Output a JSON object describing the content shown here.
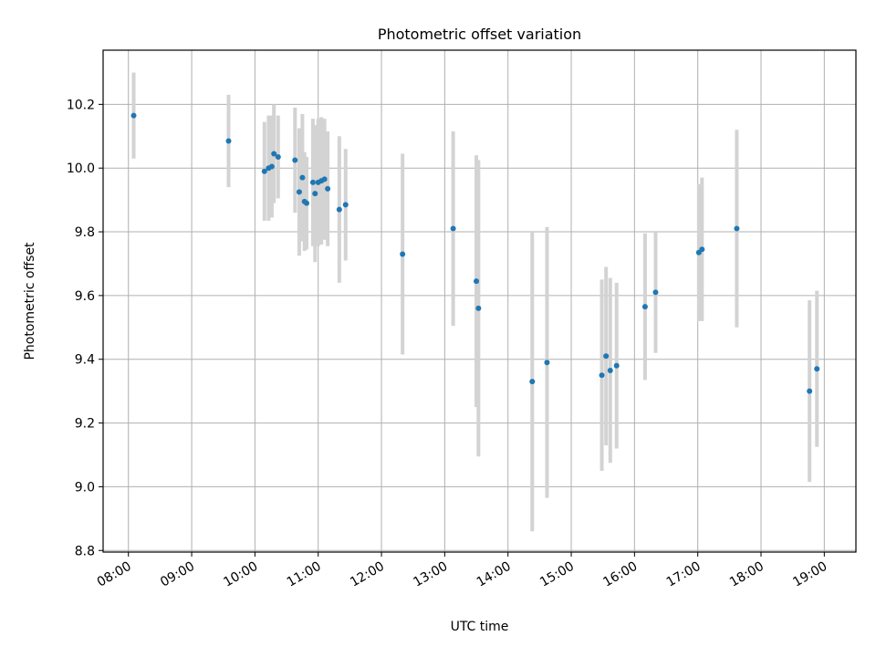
{
  "chart_data": {
    "type": "scatter",
    "title": "Photometric offset variation",
    "xlabel": "UTC time",
    "ylabel": "Photometric offset",
    "x_unit": "time (HH:MM)",
    "xlim": [
      "07:36",
      "19:30"
    ],
    "ylim": [
      8.795,
      10.37
    ],
    "x_ticks": [
      "08:00",
      "09:00",
      "10:00",
      "11:00",
      "12:00",
      "13:00",
      "14:00",
      "15:00",
      "16:00",
      "17:00",
      "18:00",
      "19:00"
    ],
    "y_ticks": [
      "8.8",
      "9.0",
      "9.2",
      "9.4",
      "9.6",
      "9.8",
      "10.0",
      "10.2"
    ],
    "grid": true,
    "marker_color": "#1f77b4",
    "errorbar_color": "#d3d3d3",
    "points": [
      {
        "x": "08:05",
        "y": 10.165,
        "err": 0.135
      },
      {
        "x": "09:35",
        "y": 10.085,
        "err": 0.145
      },
      {
        "x": "10:09",
        "y": 9.99,
        "err": 0.155
      },
      {
        "x": "10:13",
        "y": 10.0,
        "err": 0.165
      },
      {
        "x": "10:16",
        "y": 10.005,
        "err": 0.16
      },
      {
        "x": "10:18",
        "y": 10.045,
        "err": 0.155
      },
      {
        "x": "10:22",
        "y": 10.035,
        "err": 0.13
      },
      {
        "x": "10:38",
        "y": 10.025,
        "err": 0.165
      },
      {
        "x": "10:42",
        "y": 9.925,
        "err": 0.2
      },
      {
        "x": "10:45",
        "y": 9.97,
        "err": 0.2
      },
      {
        "x": "10:47",
        "y": 9.895,
        "err": 0.155
      },
      {
        "x": "10:49",
        "y": 9.89,
        "err": 0.145
      },
      {
        "x": "10:55",
        "y": 9.955,
        "err": 0.2
      },
      {
        "x": "10:57",
        "y": 9.92,
        "err": 0.215
      },
      {
        "x": "11:00",
        "y": 9.955,
        "err": 0.2
      },
      {
        "x": "11:03",
        "y": 9.96,
        "err": 0.2
      },
      {
        "x": "11:06",
        "y": 9.965,
        "err": 0.19
      },
      {
        "x": "11:09",
        "y": 9.935,
        "err": 0.18
      },
      {
        "x": "11:20",
        "y": 9.87,
        "err": 0.23
      },
      {
        "x": "11:26",
        "y": 9.885,
        "err": 0.175
      },
      {
        "x": "12:20",
        "y": 9.73,
        "err": 0.315
      },
      {
        "x": "13:08",
        "y": 9.81,
        "err": 0.305
      },
      {
        "x": "13:30",
        "y": 9.645,
        "err": 0.395
      },
      {
        "x": "13:32",
        "y": 9.56,
        "err": 0.465
      },
      {
        "x": "14:23",
        "y": 9.33,
        "err": 0.47
      },
      {
        "x": "14:37",
        "y": 9.39,
        "err": 0.425
      },
      {
        "x": "15:29",
        "y": 9.35,
        "err": 0.3
      },
      {
        "x": "15:33",
        "y": 9.41,
        "err": 0.28
      },
      {
        "x": "15:37",
        "y": 9.365,
        "err": 0.29
      },
      {
        "x": "15:43",
        "y": 9.38,
        "err": 0.26
      },
      {
        "x": "16:10",
        "y": 9.565,
        "err": 0.23
      },
      {
        "x": "16:20",
        "y": 9.61,
        "err": 0.19
      },
      {
        "x": "17:01",
        "y": 9.735,
        "err": 0.215
      },
      {
        "x": "17:04",
        "y": 9.745,
        "err": 0.225
      },
      {
        "x": "17:37",
        "y": 9.81,
        "err": 0.31
      },
      {
        "x": "18:46",
        "y": 9.3,
        "err": 0.285
      },
      {
        "x": "18:53",
        "y": 9.37,
        "err": 0.245
      }
    ]
  }
}
